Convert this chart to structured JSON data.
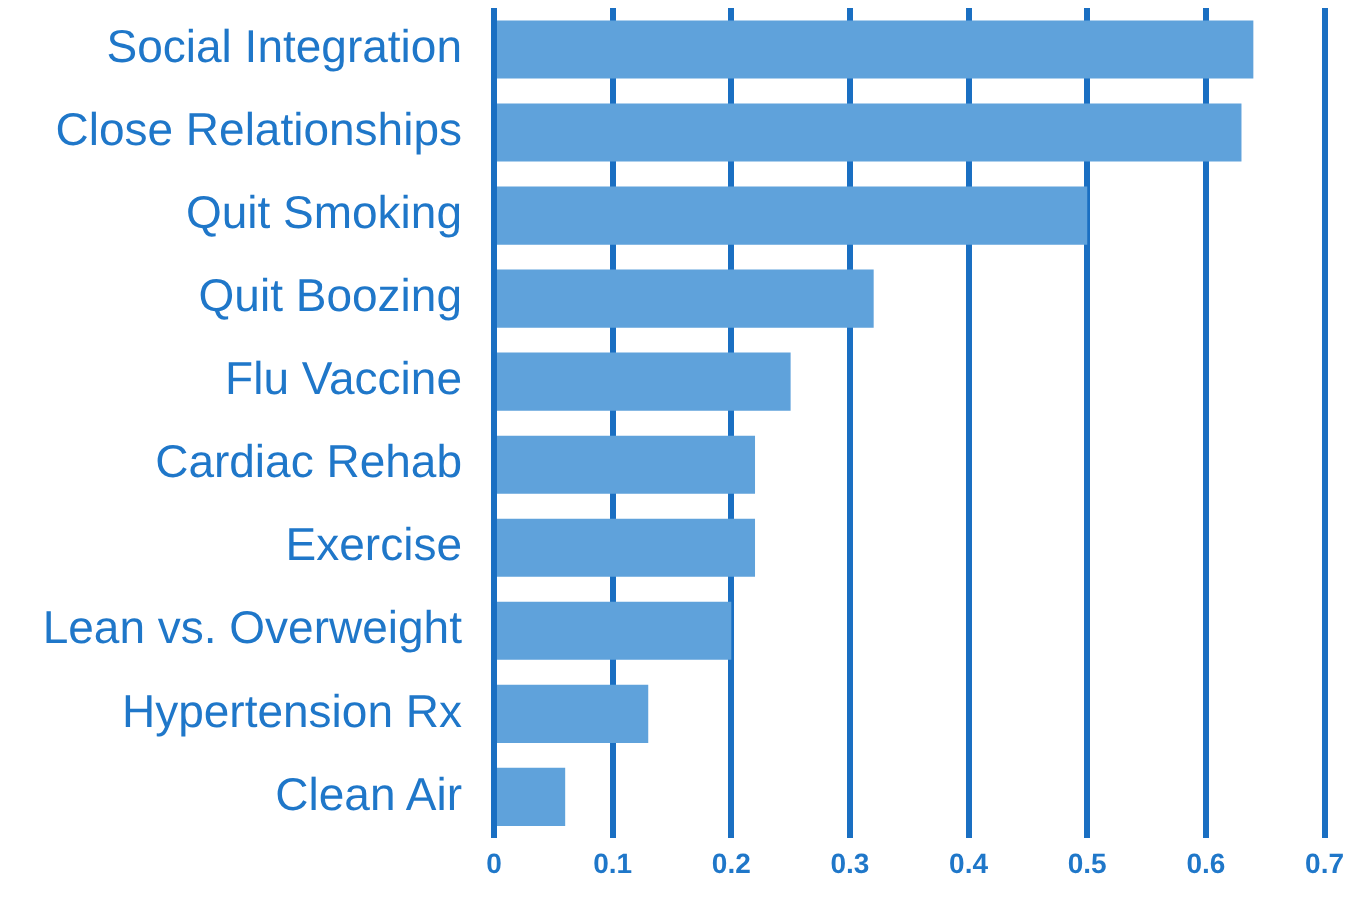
{
  "chart_data": {
    "type": "bar",
    "orientation": "horizontal",
    "categories": [
      "Social Integration",
      "Close Relationships",
      "Quit Smoking",
      "Quit Boozing",
      "Flu Vaccine",
      "Cardiac Rehab",
      "Exercise",
      "Lean vs. Overweight",
      "Hypertension Rx",
      "Clean Air"
    ],
    "values": [
      0.64,
      0.63,
      0.5,
      0.32,
      0.25,
      0.22,
      0.22,
      0.2,
      0.13,
      0.06
    ],
    "color": "#5fa2db",
    "xlim": [
      0,
      0.7
    ],
    "xticks": [
      0,
      0.1,
      0.2,
      0.3,
      0.4,
      0.5,
      0.6,
      0.7
    ],
    "grid": "x"
  }
}
